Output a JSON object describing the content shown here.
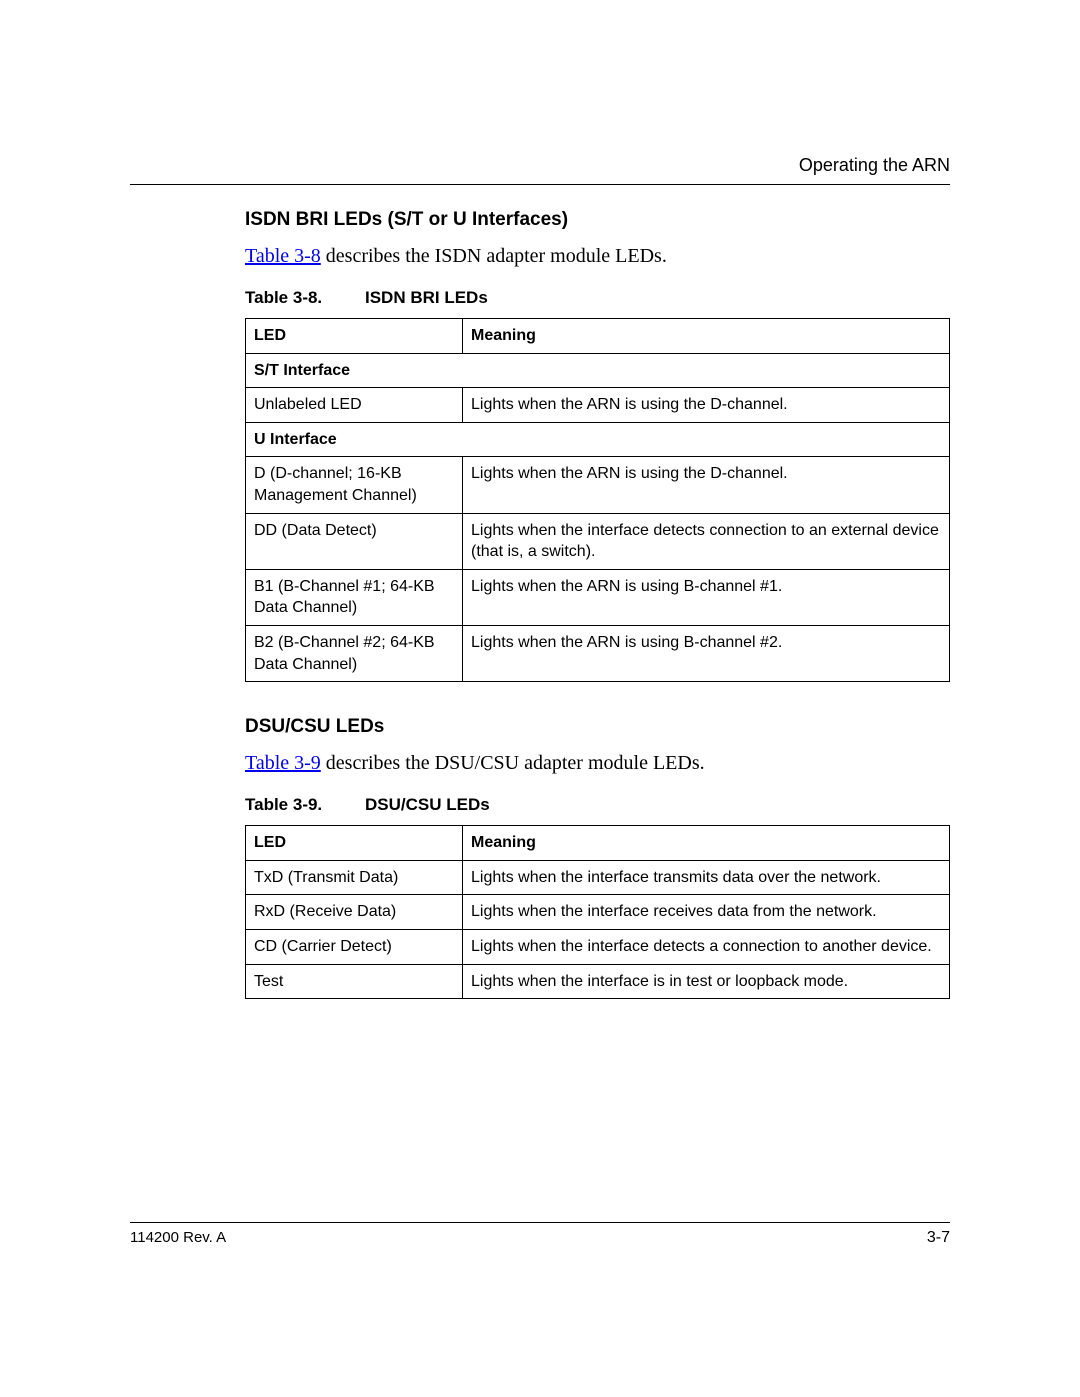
{
  "header": {
    "chapter_title": "Operating the ARN"
  },
  "section1": {
    "heading": "ISDN BRI LEDs (S/T or U Interfaces)",
    "intro_link": "Table 3-8",
    "intro_rest": " describes the ISDN adapter module LEDs.",
    "table_caption_num": "Table 3-8.",
    "table_caption_title": "ISDN BRI LEDs",
    "columns": {
      "led": "LED",
      "meaning": "Meaning"
    },
    "sub1": "S/T Interface",
    "rows_st": [
      {
        "led": "Unlabeled LED",
        "meaning": "Lights when the ARN is using the D-channel."
      }
    ],
    "sub2": "U Interface",
    "rows_u": [
      {
        "led": "D\n(D-channel; 16-KB Management Channel)",
        "meaning": "Lights when the ARN is using the D-channel."
      },
      {
        "led": "DD\n(Data Detect)",
        "meaning": "Lights when the interface detects connection to an external device (that is, a switch)."
      },
      {
        "led": "B1\n(B-Channel #1; 64-KB Data Channel)",
        "meaning": "Lights when the ARN is using B-channel #1."
      },
      {
        "led": "B2\n(B-Channel #2; 64-KB Data Channel)",
        "meaning": "Lights when the ARN is using B-channel #2."
      }
    ]
  },
  "section2": {
    "heading": "DSU/CSU LEDs",
    "intro_link": "Table 3-9",
    "intro_rest": " describes the DSU/CSU adapter module LEDs.",
    "table_caption_num": "Table 3-9.",
    "table_caption_title": "DSU/CSU LEDs",
    "columns": {
      "led": "LED",
      "meaning": "Meaning"
    },
    "rows": [
      {
        "led": "TxD\n(Transmit Data)",
        "meaning": "Lights when the interface transmits data over the network."
      },
      {
        "led": "RxD\n(Receive Data)",
        "meaning": "Lights when the interface receives data from the network."
      },
      {
        "led": "CD\n(Carrier Detect)",
        "meaning": "Lights when the interface detects a connection to another device."
      },
      {
        "led": "Test",
        "meaning": "Lights when the interface is in test or loopback mode."
      }
    ]
  },
  "footer": {
    "revision": "114200 Rev. A",
    "page_number": "3-7"
  }
}
